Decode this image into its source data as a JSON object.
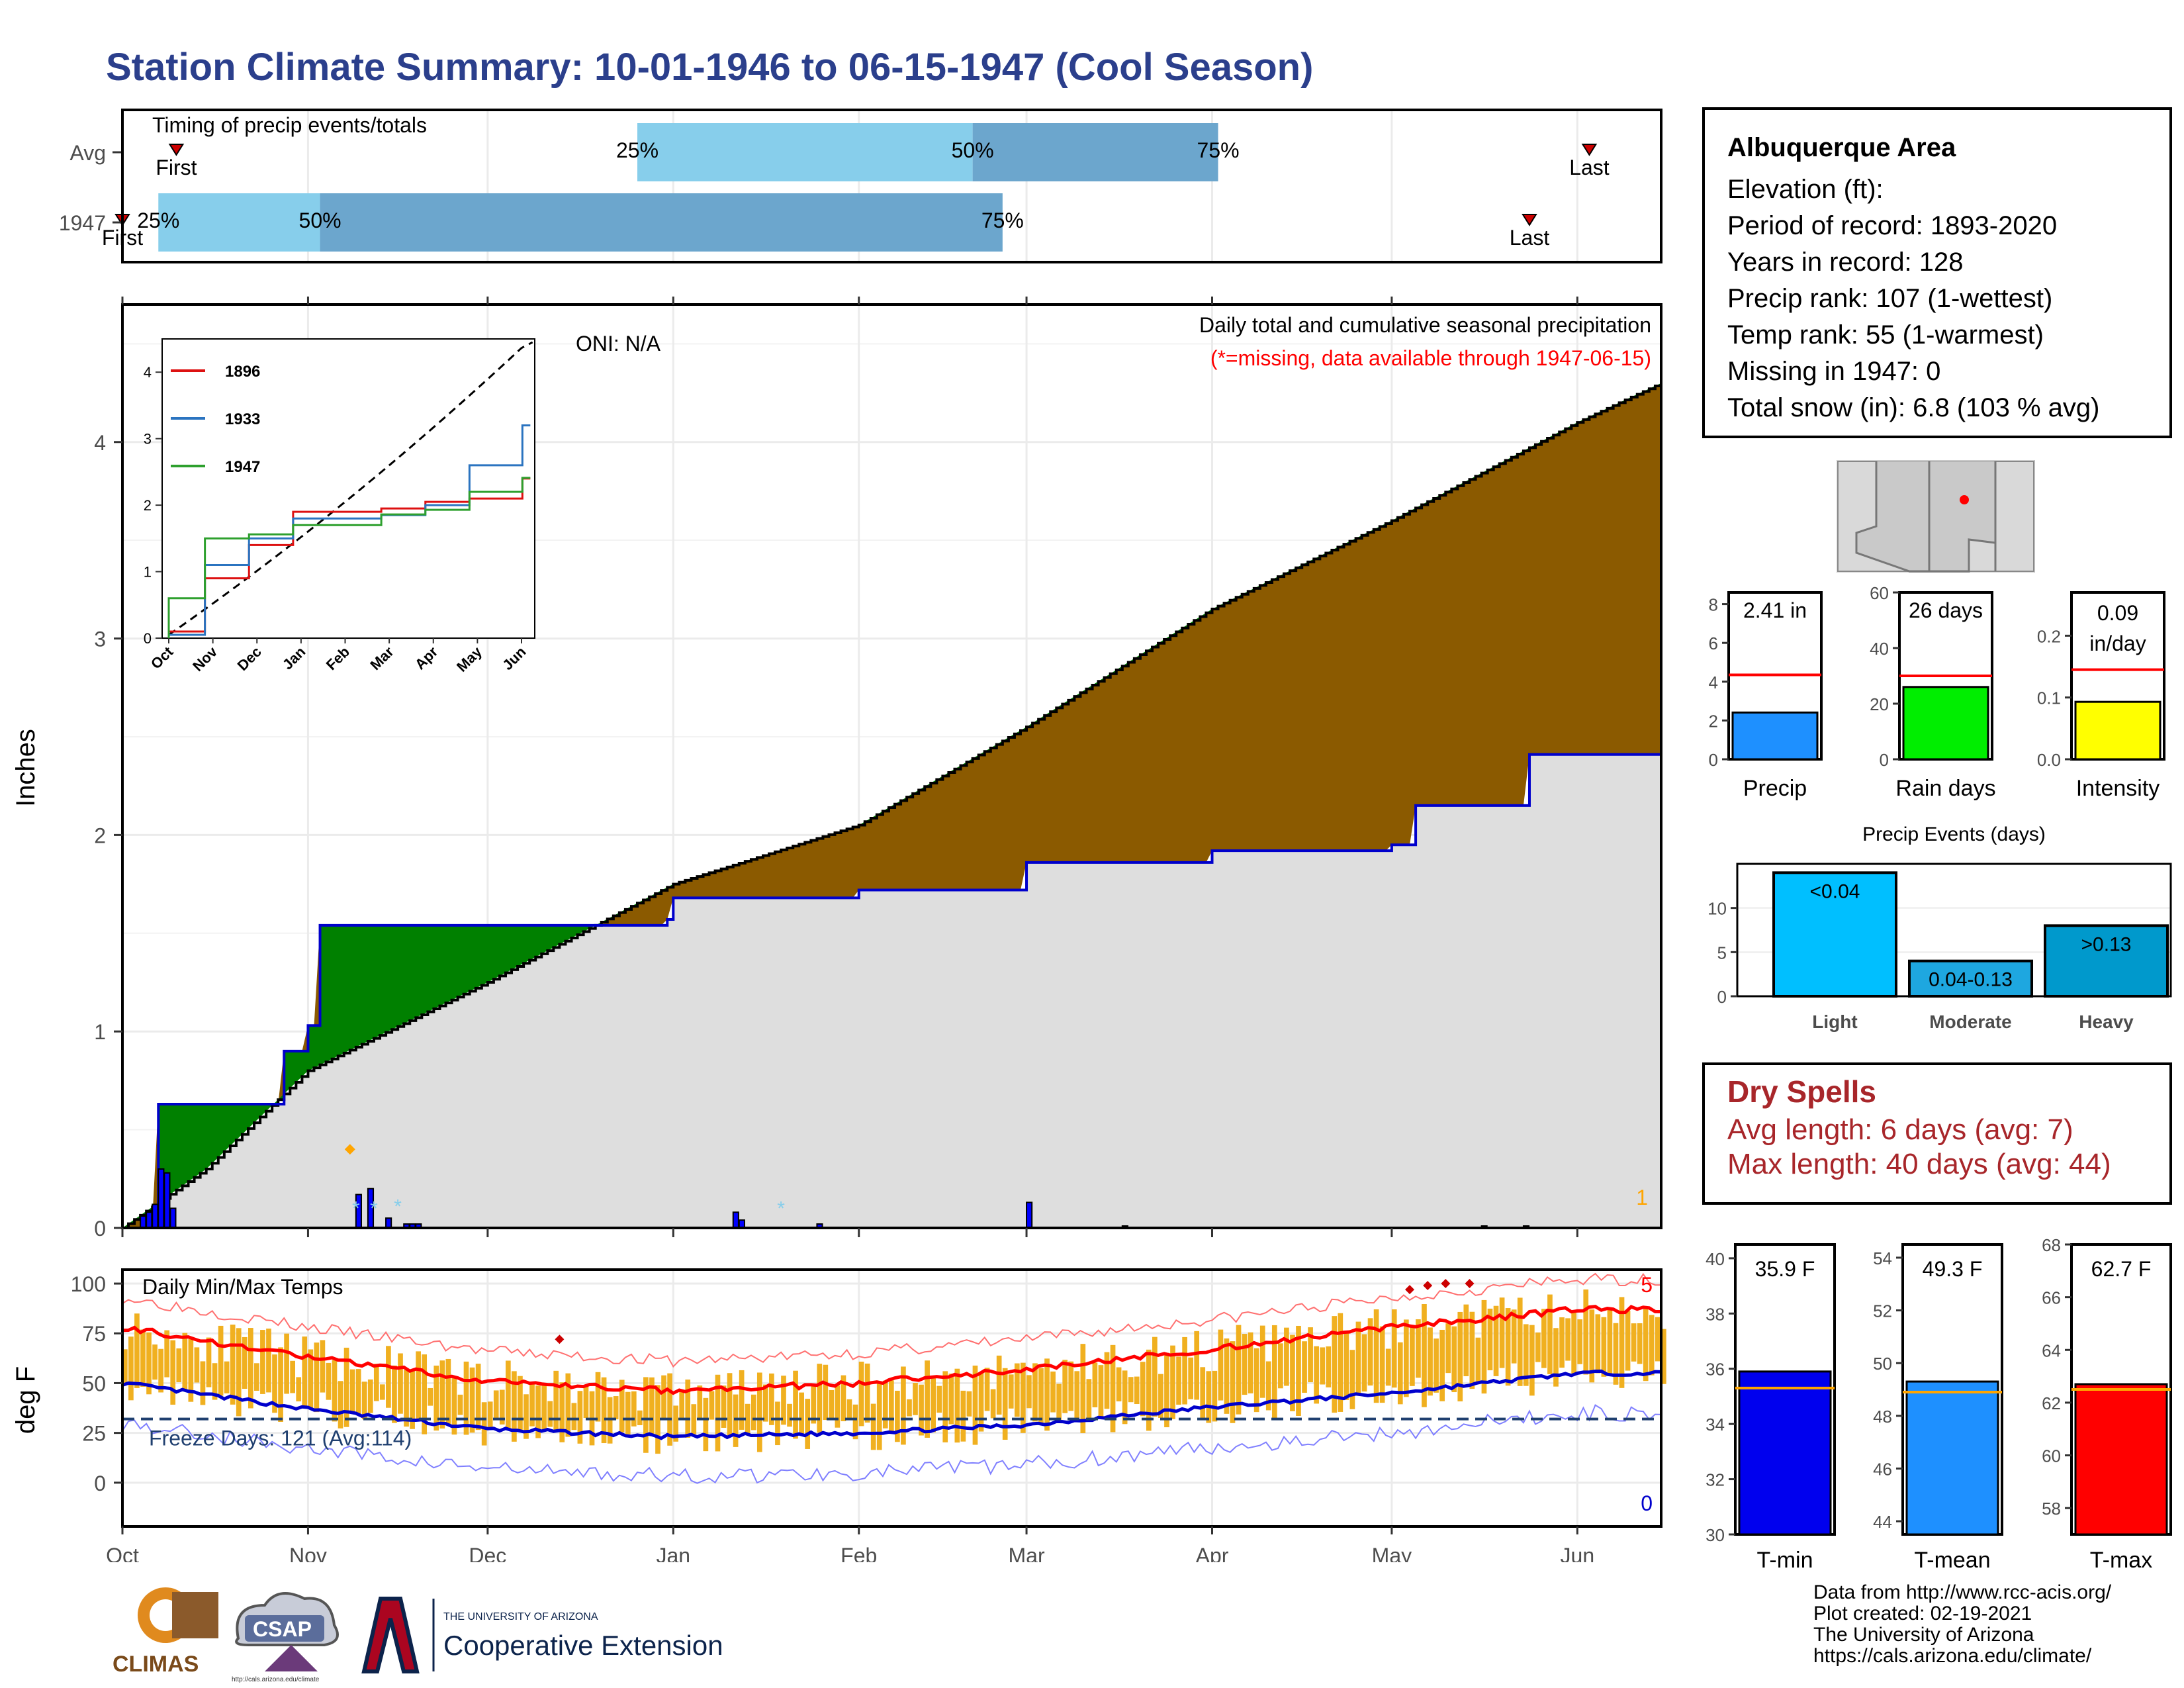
{
  "title": "Station Climate Summary: 10-01-1946 to 06-15-1947 (Cool Season)",
  "colors": {
    "title": "#2b3f8c",
    "cum_fill": "#8b5a00",
    "deficit_fill": "#008000",
    "climo_fill": "#dedede",
    "year_line": "#0000cc",
    "bars_precip": "#0000ff",
    "temp_band": "#f0b020",
    "tmax_avg": "#ff0000",
    "tmin_avg": "#0000cc"
  },
  "timing": {
    "title": "Timing of precip events/totals",
    "rows": [
      {
        "label": "Avg",
        "first_label": "First",
        "last_label": "Last",
        "first_date": "1946-10-10",
        "last_date": "1947-06-03",
        "q25_label": "25%",
        "q50_label": "50%",
        "q75_label": "75%",
        "q25": "1946-12-26",
        "q50": "1947-02-20",
        "q75": "1947-04-02"
      },
      {
        "label": "1947",
        "first_label": "First",
        "last_label": "Last",
        "first_date": "1946-10-01",
        "last_date": "1947-05-24",
        "q25_label": "25%",
        "q50_label": "50%",
        "q75_label": "75%",
        "q25": "1946-10-07",
        "q50": "1946-11-03",
        "q75": "1947-02-25"
      }
    ]
  },
  "precip_panel": {
    "ylabel": "Inches",
    "yticks": [
      "0",
      "1",
      "2",
      "3",
      "4"
    ],
    "months": [
      "Oct",
      "Nov",
      "Dec",
      "Jan",
      "Feb",
      "Mar",
      "Apr",
      "May",
      "Jun"
    ],
    "oni": "ONI: N/A",
    "legend_title": "Daily total and cumulative seasonal precipitation",
    "missing_note": "(*=missing, data available through 1947-06-15)",
    "corner_value": "1"
  },
  "inset": {
    "yticks": [
      "0",
      "1",
      "2",
      "3",
      "4"
    ],
    "months": [
      "Oct",
      "Nov",
      "Dec",
      "Jan",
      "Feb",
      "Mar",
      "Apr",
      "May",
      "Jun"
    ],
    "legend": [
      {
        "name": "1896",
        "color": "#dd1111"
      },
      {
        "name": "1933",
        "color": "#2b74c0"
      },
      {
        "name": "1947",
        "color": "#2ea02e"
      }
    ]
  },
  "temp_panel": {
    "ylabel": "deg F",
    "title": "Daily Min/Max Temps",
    "yticks": [
      "0",
      "25",
      "50",
      "75",
      "100"
    ],
    "freeze": "Freeze Days: 121 (Avg:114)",
    "count_top": "5",
    "count_bottom": "0",
    "months": [
      "Oct",
      "Nov",
      "Dec",
      "Jan",
      "Feb",
      "Mar",
      "Apr",
      "May",
      "Jun"
    ]
  },
  "info": {
    "name": "Albuquerque Area",
    "elevation": "Elevation (ft):",
    "period": "Period of record: 1893-2020",
    "years": "Years in record: 128",
    "precip_rank": "Precip rank: 107 (1-wettest)",
    "temp_rank": "Temp rank: 55 (1-warmest)",
    "missing": "Missing in 1947: 0",
    "snow": "Total snow (in): 6.8 (103 % avg)"
  },
  "mini_bars": [
    {
      "label": "Precip",
      "value_text": "2.41 in",
      "value": 2.41,
      "avg": 4.35,
      "ymax": 8.6,
      "ticks": [
        "0",
        "2",
        "4",
        "6",
        "8"
      ],
      "color": "#1e90ff"
    },
    {
      "label": "Rain days",
      "value_text": "26 days",
      "value": 26,
      "avg": 30,
      "ymax": 60,
      "ticks": [
        "0",
        "20",
        "40",
        "60"
      ],
      "color": "#00ee00"
    },
    {
      "label": "Intensity",
      "value_text1": "0.09",
      "value_text2": "in/day",
      "value": 0.093,
      "avg": 0.145,
      "ymax": 0.27,
      "ticks": [
        "0.0",
        "0.1",
        "0.2"
      ],
      "color": "#ffff00"
    }
  ],
  "events": {
    "title": "Precip Events (days)",
    "ticks": [
      "0",
      "5",
      "10"
    ],
    "categories": [
      "Light",
      "Moderate",
      "Heavy"
    ],
    "values": [
      14,
      4,
      8
    ],
    "labels": [
      "<0.04",
      "0.04-0.13",
      ">0.13"
    ],
    "colors": [
      "#00bfff",
      "#1ea7e0",
      "#0099cc"
    ]
  },
  "dry": {
    "title": "Dry Spells",
    "avg": "Avg length: 6 days (avg: 7)",
    "max": "Max length: 40 days (avg: 44)"
  },
  "temp_bars": [
    {
      "label": "T-min",
      "value_text": "35.9 F",
      "value": 35.9,
      "avg": 35.3,
      "ymin": 30,
      "ymax": 40.5,
      "ticks": [
        "30",
        "32",
        "34",
        "36",
        "38",
        "40"
      ],
      "color": "#0000ee"
    },
    {
      "label": "T-mean",
      "value_text": "49.3 F",
      "value": 49.3,
      "avg": 48.9,
      "ymin": 43.5,
      "ymax": 54.5,
      "ticks": [
        "44",
        "46",
        "48",
        "50",
        "52",
        "54"
      ],
      "color": "#1e90ff"
    },
    {
      "label": "T-max",
      "value_text": "62.7 F",
      "value": 62.7,
      "avg": 62.5,
      "ymin": 57,
      "ymax": 68,
      "ticks": [
        "58",
        "60",
        "62",
        "64",
        "66",
        "68"
      ],
      "color": "#ff0000"
    }
  ],
  "credits": [
    "Data from http://www.rcc-acis.org/",
    "Plot created: 02-19-2021",
    "The University of Arizona",
    "https://cals.arizona.edu/climate/"
  ],
  "logos": {
    "climas": "CLIMAS",
    "csap": "CSAP",
    "csap_url": "http://cals.arizona.edu/climate",
    "ua_small": "THE UNIVERSITY OF ARIZONA",
    "ua_big": "Cooperative Extension"
  },
  "chart_data": [
    {
      "type": "area",
      "title": "Daily total and cumulative seasonal precipitation",
      "ylabel": "Inches",
      "ylim": [
        0,
        4.7
      ],
      "series": [
        {
          "name": "",
          "x": [
            "1946-10-01",
            "1946-10-15",
            "1946-11-01",
            "1946-12-01",
            "1947-01-01",
            "1947-02-01",
            "1947-03-01",
            "1947-04-01",
            "1947-05-01",
            "1947-06-01",
            "1947-06-15"
          ],
          "values": [
            0,
            0.3,
            0.8,
            1.25,
            1.75,
            2.05,
            2.55,
            3.15,
            3.6,
            4.1,
            4.3
          ]
        },
        {
          "name": "",
          "x": [
            "1946-10-01",
            "1946-10-05",
            "1946-10-07",
            "1946-10-20",
            "1946-10-28",
            "1946-11-01",
            "1946-11-03",
            "1946-12-31",
            "1947-01-01",
            "1947-02-01",
            "1947-03-01",
            "1947-04-01",
            "1947-05-01",
            "1947-05-05",
            "1947-05-24",
            "1947-06-15"
          ],
          "values": [
            0,
            0.05,
            0.63,
            0.63,
            0.9,
            1.03,
            1.54,
            1.57,
            1.68,
            1.72,
            1.86,
            1.92,
            1.95,
            2.15,
            2.41,
            2.41
          ]
        }
      ]
    },
    {
      "type": "line",
      "title": "",
      "ylim": [
        0,
        4.5
      ],
      "series": [
        {
          "name": "1896",
          "x": [
            "Oct",
            "Nov",
            "Dec",
            "Jan",
            "Mar",
            "Apr",
            "May",
            "Jun"
          ],
          "values": [
            0.1,
            0.9,
            1.4,
            1.9,
            1.95,
            2.05,
            2.1,
            2.4
          ]
        },
        {
          "name": "1933",
          "x": [
            "Oct",
            "Nov",
            "Dec",
            "Jan",
            "Mar",
            "Apr",
            "May",
            "Jun"
          ],
          "values": [
            0.05,
            1.1,
            1.5,
            1.8,
            1.85,
            2.0,
            2.6,
            3.2
          ]
        },
        {
          "name": "1947",
          "x": [
            "Oct",
            "Nov",
            "Dec",
            "Jan",
            "Mar",
            "Apr",
            "May",
            "Jun"
          ],
          "values": [
            0.6,
            1.5,
            1.56,
            1.7,
            1.86,
            1.93,
            2.2,
            2.41
          ]
        }
      ]
    },
    {
      "type": "line",
      "title": "Daily Min/Max Temps",
      "ylabel": "deg F",
      "ylim": [
        -20,
        105
      ],
      "series": [
        {
          "name": "",
          "x": [
            "Oct",
            "Nov",
            "Dec",
            "Jan",
            "Feb",
            "Mar",
            "Apr",
            "May",
            "Jun"
          ],
          "values": [
            78,
            63,
            51,
            46,
            50,
            57,
            67,
            78,
            87
          ]
        },
        {
          "name": "",
          "x": [
            "Oct",
            "Nov",
            "Dec",
            "Jan",
            "Feb",
            "Mar",
            "Apr",
            "May",
            "Jun"
          ],
          "values": [
            50,
            37,
            27,
            23,
            25,
            29,
            38,
            45,
            55
          ]
        }
      ]
    },
    {
      "type": "bar",
      "title": "Precip Events (days)",
      "categories": [
        "Light",
        "Moderate",
        "Heavy"
      ],
      "values": [
        14,
        4,
        8
      ]
    }
  ]
}
